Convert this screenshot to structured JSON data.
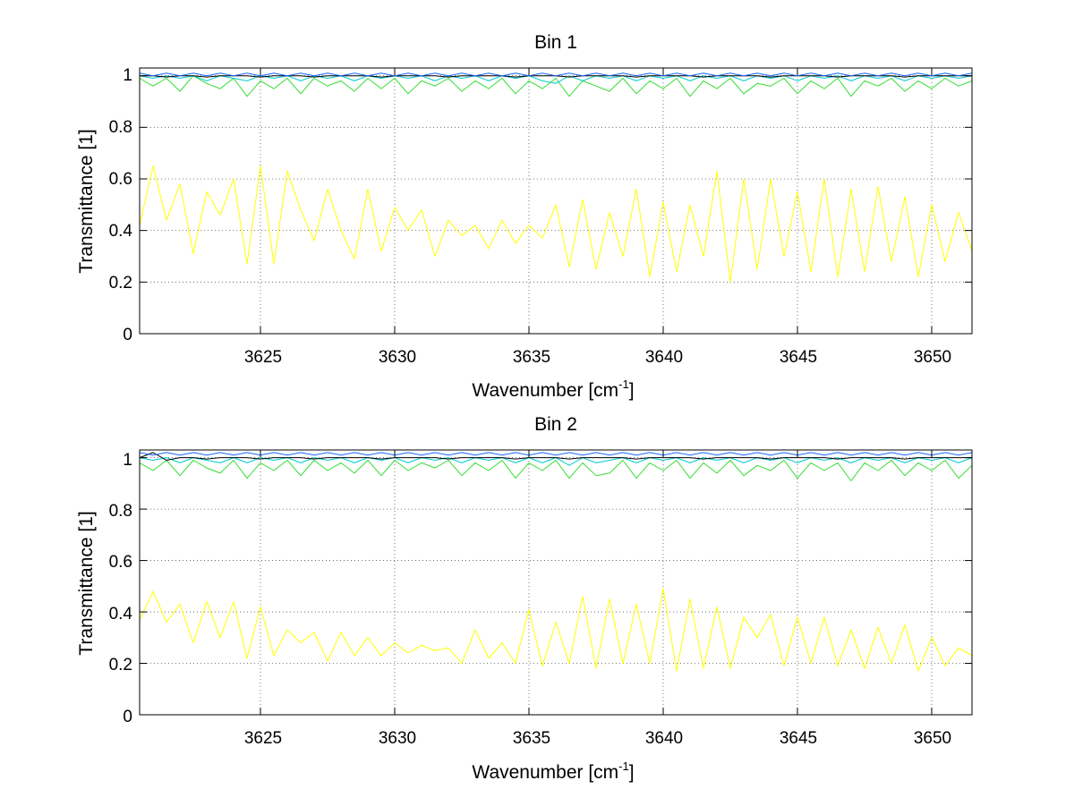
{
  "chart_data": [
    {
      "type": "line",
      "title": "Bin 1",
      "xlabel_main": "Wavenumber [cm",
      "xlabel_sup": "-1",
      "xlabel_tail": "]",
      "ylabel": "Transmittance [1]",
      "xlim": [
        3620.5,
        3651.5
      ],
      "ylim": [
        0,
        1.03
      ],
      "xticks": [
        3625,
        3630,
        3635,
        3640,
        3645,
        3650
      ],
      "xtick_labels": [
        "3625",
        "3630",
        "3635",
        "3640",
        "3645",
        "3650"
      ],
      "yticks": [
        0,
        0.2,
        0.4,
        0.6,
        0.8,
        1
      ],
      "ytick_labels": [
        "0",
        "0.2",
        "0.4",
        "0.6",
        "0.8",
        "1"
      ],
      "grid": true,
      "x": [
        3620.5,
        3621,
        3621.5,
        3622,
        3622.5,
        3623,
        3623.5,
        3624,
        3624.5,
        3625,
        3625.5,
        3626,
        3626.5,
        3627,
        3627.5,
        3628,
        3628.5,
        3629,
        3629.5,
        3630,
        3630.5,
        3631,
        3631.5,
        3632,
        3632.5,
        3633,
        3633.5,
        3634,
        3634.5,
        3635,
        3635.5,
        3636,
        3636.5,
        3637,
        3637.5,
        3638,
        3638.5,
        3639,
        3639.5,
        3640,
        3640.5,
        3641,
        3641.5,
        3642,
        3642.5,
        3643,
        3643.5,
        3644,
        3644.5,
        3645,
        3645.5,
        3646,
        3646.5,
        3647,
        3647.5,
        3648,
        3648.5,
        3649,
        3649.5,
        3650,
        3650.5,
        3651,
        3651.5
      ],
      "series": [
        {
          "name": "yellow",
          "color": "#ffff00",
          "values": [
            0.42,
            0.65,
            0.44,
            0.58,
            0.31,
            0.55,
            0.46,
            0.6,
            0.27,
            0.65,
            0.27,
            0.63,
            0.48,
            0.36,
            0.56,
            0.4,
            0.29,
            0.56,
            0.32,
            0.49,
            0.4,
            0.48,
            0.3,
            0.44,
            0.38,
            0.42,
            0.33,
            0.44,
            0.35,
            0.42,
            0.37,
            0.5,
            0.26,
            0.52,
            0.25,
            0.47,
            0.3,
            0.56,
            0.22,
            0.51,
            0.24,
            0.5,
            0.3,
            0.63,
            0.2,
            0.6,
            0.25,
            0.6,
            0.3,
            0.55,
            0.24,
            0.6,
            0.22,
            0.56,
            0.24,
            0.57,
            0.28,
            0.53,
            0.22,
            0.5,
            0.28,
            0.47,
            0.32
          ]
        },
        {
          "name": "green",
          "color": "#33dd33",
          "values": [
            0.99,
            0.96,
            0.99,
            0.94,
            1.0,
            0.97,
            0.95,
            0.99,
            0.92,
            0.98,
            0.95,
            0.99,
            0.93,
            0.99,
            0.96,
            0.98,
            0.94,
            0.99,
            0.95,
            0.99,
            0.93,
            0.98,
            0.96,
            0.99,
            0.94,
            0.98,
            0.95,
            0.99,
            0.93,
            0.98,
            0.95,
            0.99,
            0.92,
            0.98,
            0.96,
            0.94,
            0.99,
            0.93,
            0.98,
            0.95,
            0.99,
            0.92,
            0.98,
            0.95,
            0.99,
            0.93,
            0.97,
            0.96,
            0.99,
            0.93,
            0.98,
            0.95,
            0.99,
            0.92,
            0.98,
            0.96,
            0.99,
            0.94,
            0.98,
            0.95,
            0.99,
            0.96,
            0.98
          ]
        },
        {
          "name": "cyan",
          "color": "#00cccc",
          "values": [
            1.0,
            0.99,
            1.0,
            0.99,
            1.0,
            0.98,
            1.0,
            0.99,
            0.98,
            1.0,
            0.99,
            1.0,
            0.98,
            1.0,
            0.99,
            1.0,
            0.98,
            1.0,
            0.99,
            1.0,
            0.99,
            1.0,
            0.98,
            1.0,
            0.99,
            1.0,
            0.98,
            1.0,
            0.99,
            1.0,
            0.98,
            0.97,
            1.0,
            0.98,
            1.0,
            0.99,
            1.0,
            0.98,
            1.0,
            0.99,
            1.0,
            0.98,
            1.0,
            0.99,
            1.0,
            0.98,
            1.0,
            0.99,
            1.0,
            0.98,
            1.0,
            0.99,
            1.0,
            0.98,
            1.0,
            0.99,
            1.0,
            0.98,
            1.0,
            0.99,
            1.0,
            0.99,
            1.0
          ]
        },
        {
          "name": "black",
          "color": "#000000",
          "values": [
            1.0,
            1.0,
            0.995,
            1.0,
            1.0,
            0.995,
            1.0,
            1.0,
            1.0,
            0.995,
            1.0,
            1.0,
            1.0,
            0.995,
            1.0,
            1.0,
            1.0,
            1.0,
            0.995,
            1.0,
            1.0,
            1.0,
            1.0,
            0.995,
            1.0,
            1.0,
            1.0,
            1.0,
            0.995,
            1.0,
            1.0,
            1.0,
            0.995,
            1.0,
            1.0,
            1.0,
            1.0,
            0.995,
            1.0,
            1.0,
            1.0,
            1.0,
            0.995,
            1.0,
            1.0,
            1.0,
            1.0,
            0.995,
            1.0,
            1.0,
            1.0,
            1.0,
            0.995,
            1.0,
            1.0,
            1.0,
            1.0,
            0.995,
            1.0,
            1.0,
            1.0,
            1.0,
            1.0
          ]
        },
        {
          "name": "blue",
          "color": "#1a66ff",
          "values": [
            1.01,
            1.0,
            1.01,
            1.0,
            1.01,
            1.0,
            1.01,
            1.0,
            1.01,
            1.0,
            1.01,
            1.0,
            1.01,
            1.0,
            1.01,
            1.0,
            1.01,
            1.0,
            1.01,
            1.0,
            1.01,
            1.0,
            1.01,
            1.0,
            1.01,
            1.0,
            1.01,
            1.0,
            1.01,
            1.0,
            1.01,
            1.0,
            1.01,
            1.0,
            1.01,
            1.0,
            1.01,
            1.0,
            1.01,
            1.0,
            1.01,
            1.0,
            1.01,
            1.0,
            1.01,
            1.0,
            1.01,
            1.0,
            1.01,
            1.0,
            1.01,
            1.0,
            1.01,
            1.0,
            1.01,
            1.0,
            1.01,
            1.0,
            1.01,
            1.0,
            1.01,
            1.0,
            1.01
          ]
        },
        {
          "name": "red",
          "color": "#cc3300",
          "values": [
            0,
            0,
            0,
            0,
            0,
            0,
            0,
            0,
            0,
            0,
            0,
            0,
            0,
            0,
            0,
            0,
            0,
            0,
            0,
            0,
            0,
            0,
            0,
            0,
            0,
            0,
            0,
            0,
            0,
            0,
            0,
            0,
            0,
            0,
            0,
            0,
            0,
            0,
            0,
            0,
            0,
            0,
            0,
            0,
            0,
            0,
            0,
            0,
            0,
            0,
            0,
            0,
            0,
            0,
            0,
            0,
            0,
            0,
            0,
            0,
            0,
            0,
            0
          ]
        }
      ]
    },
    {
      "type": "line",
      "title": "Bin 2",
      "xlabel_main": "Wavenumber [cm",
      "xlabel_sup": "-1",
      "xlabel_tail": "]",
      "ylabel": "Transmittance [1]",
      "xlim": [
        3620.5,
        3651.5
      ],
      "ylim": [
        0,
        1.03
      ],
      "xticks": [
        3625,
        3630,
        3635,
        3640,
        3645,
        3650
      ],
      "xtick_labels": [
        "3625",
        "3630",
        "3635",
        "3640",
        "3645",
        "3650"
      ],
      "yticks": [
        0,
        0.2,
        0.4,
        0.6,
        0.8,
        1
      ],
      "ytick_labels": [
        "0",
        "0.2",
        "0.4",
        "0.6",
        "0.8",
        "1"
      ],
      "grid": true,
      "x": [
        3620.5,
        3621,
        3621.5,
        3622,
        3622.5,
        3623,
        3623.5,
        3624,
        3624.5,
        3625,
        3625.5,
        3626,
        3626.5,
        3627,
        3627.5,
        3628,
        3628.5,
        3629,
        3629.5,
        3630,
        3630.5,
        3631,
        3631.5,
        3632,
        3632.5,
        3633,
        3633.5,
        3634,
        3634.5,
        3635,
        3635.5,
        3636,
        3636.5,
        3637,
        3637.5,
        3638,
        3638.5,
        3639,
        3639.5,
        3640,
        3640.5,
        3641,
        3641.5,
        3642,
        3642.5,
        3643,
        3643.5,
        3644,
        3644.5,
        3645,
        3645.5,
        3646,
        3646.5,
        3647,
        3647.5,
        3648,
        3648.5,
        3649,
        3649.5,
        3650,
        3650.5,
        3651,
        3651.5
      ],
      "series": [
        {
          "name": "yellow",
          "color": "#ffff00",
          "values": [
            0.37,
            0.48,
            0.36,
            0.43,
            0.28,
            0.44,
            0.3,
            0.44,
            0.22,
            0.42,
            0.23,
            0.33,
            0.28,
            0.32,
            0.21,
            0.32,
            0.23,
            0.3,
            0.23,
            0.28,
            0.24,
            0.27,
            0.25,
            0.26,
            0.2,
            0.33,
            0.22,
            0.28,
            0.2,
            0.41,
            0.19,
            0.36,
            0.2,
            0.46,
            0.18,
            0.45,
            0.2,
            0.43,
            0.2,
            0.49,
            0.17,
            0.45,
            0.18,
            0.42,
            0.18,
            0.38,
            0.3,
            0.39,
            0.19,
            0.38,
            0.2,
            0.38,
            0.19,
            0.33,
            0.18,
            0.34,
            0.2,
            0.35,
            0.17,
            0.3,
            0.19,
            0.26,
            0.23
          ]
        },
        {
          "name": "green",
          "color": "#33dd33",
          "values": [
            0.98,
            0.95,
            0.99,
            0.93,
            0.99,
            0.96,
            0.94,
            0.99,
            0.92,
            0.98,
            0.95,
            0.99,
            0.93,
            0.99,
            0.95,
            0.98,
            0.94,
            0.99,
            0.93,
            0.99,
            0.95,
            0.98,
            0.96,
            0.99,
            0.93,
            0.98,
            0.95,
            0.99,
            0.92,
            0.98,
            0.95,
            0.99,
            0.92,
            0.98,
            0.93,
            0.94,
            0.99,
            0.92,
            0.98,
            0.95,
            0.99,
            0.92,
            0.98,
            0.94,
            0.99,
            0.93,
            0.97,
            0.95,
            0.99,
            0.92,
            0.98,
            0.95,
            0.98,
            0.91,
            0.98,
            0.95,
            0.99,
            0.93,
            0.98,
            0.95,
            0.99,
            0.92,
            0.97
          ]
        },
        {
          "name": "cyan",
          "color": "#00cccc",
          "values": [
            1.0,
            0.99,
            1.0,
            0.98,
            1.0,
            0.99,
            0.98,
            1.0,
            0.98,
            1.0,
            0.99,
            1.0,
            0.98,
            1.0,
            0.99,
            1.0,
            0.98,
            1.0,
            0.99,
            1.0,
            0.98,
            1.0,
            0.99,
            1.0,
            0.98,
            1.0,
            0.99,
            1.0,
            0.98,
            1.0,
            0.98,
            1.0,
            0.97,
            1.0,
            0.98,
            0.99,
            1.0,
            0.98,
            1.0,
            0.99,
            1.0,
            0.98,
            1.0,
            0.99,
            1.0,
            0.98,
            1.0,
            0.99,
            1.0,
            0.98,
            1.0,
            0.99,
            1.0,
            0.98,
            1.0,
            0.99,
            1.0,
            0.98,
            1.0,
            0.99,
            1.0,
            0.98,
            1.0
          ]
        },
        {
          "name": "black",
          "color": "#000000",
          "values": [
            1.0,
            1.02,
            0.99,
            1.0,
            1.0,
            0.995,
            1.0,
            1.0,
            1.0,
            0.995,
            1.0,
            1.0,
            1.0,
            0.995,
            1.0,
            1.0,
            1.0,
            1.0,
            0.995,
            1.0,
            1.0,
            1.0,
            1.0,
            0.995,
            1.0,
            1.0,
            1.0,
            1.0,
            0.995,
            1.0,
            1.0,
            1.0,
            0.995,
            1.0,
            1.0,
            1.0,
            1.0,
            0.995,
            1.0,
            1.0,
            1.0,
            1.0,
            0.995,
            1.0,
            1.0,
            1.0,
            1.0,
            0.995,
            1.0,
            1.0,
            1.0,
            1.0,
            0.995,
            1.0,
            1.0,
            1.0,
            1.0,
            0.995,
            1.0,
            1.0,
            1.0,
            1.0,
            1.0
          ]
        },
        {
          "name": "blue",
          "color": "#1a66ff",
          "values": [
            1.02,
            1.01,
            1.02,
            1.01,
            1.02,
            1.01,
            1.02,
            1.01,
            1.02,
            1.01,
            1.02,
            1.01,
            1.02,
            1.01,
            1.02,
            1.01,
            1.02,
            1.01,
            1.02,
            1.01,
            1.02,
            1.01,
            1.02,
            1.01,
            1.02,
            1.01,
            1.02,
            1.01,
            1.02,
            1.01,
            1.02,
            1.01,
            1.02,
            1.01,
            1.02,
            1.01,
            1.02,
            1.01,
            1.02,
            1.01,
            1.02,
            1.01,
            1.02,
            1.01,
            1.02,
            1.01,
            1.02,
            1.01,
            1.02,
            1.01,
            1.02,
            1.01,
            1.02,
            1.01,
            1.02,
            1.01,
            1.02,
            1.01,
            1.02,
            1.01,
            1.02,
            1.01,
            1.02
          ]
        },
        {
          "name": "red",
          "color": "#cc3300",
          "values": [
            0,
            0,
            0,
            0,
            0,
            0,
            0,
            0,
            0,
            0,
            0,
            0,
            0,
            0,
            0,
            0,
            0,
            0,
            0,
            0,
            0,
            0,
            0,
            0,
            0,
            0,
            0,
            0,
            0,
            0,
            0,
            0,
            0,
            0,
            0,
            0,
            0,
            0,
            0,
            0,
            0,
            0,
            0,
            0,
            0,
            0,
            0,
            0,
            0,
            0,
            0,
            0,
            0,
            0,
            0,
            0,
            0,
            0,
            0,
            0,
            0,
            0,
            0
          ]
        }
      ]
    }
  ]
}
